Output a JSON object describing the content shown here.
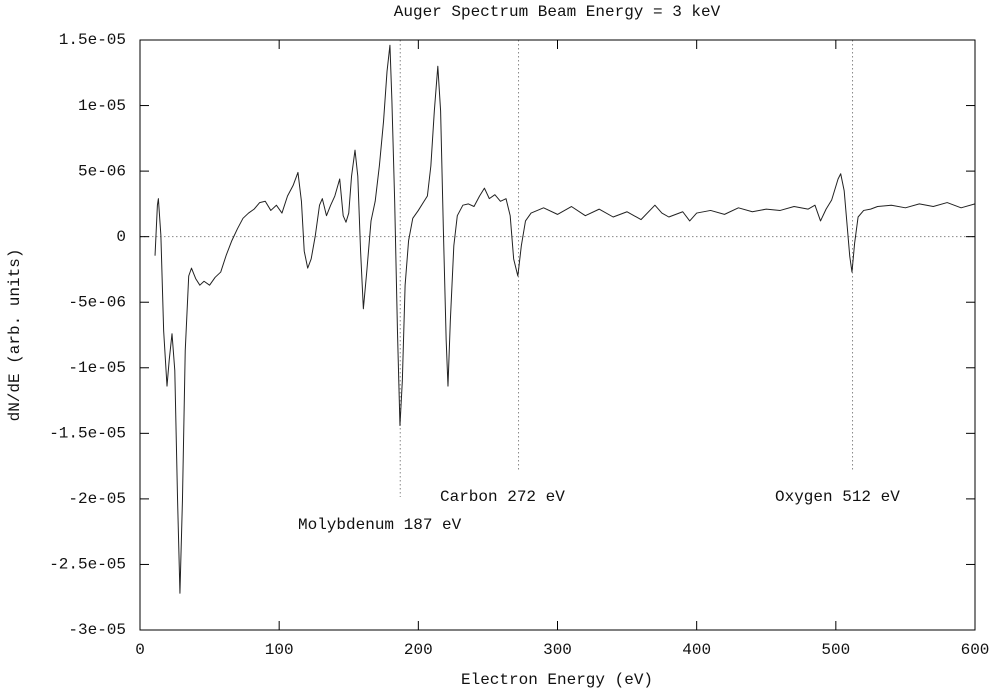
{
  "chart_data": {
    "type": "line",
    "title": "Auger Spectrum Beam Energy = 3 keV",
    "x_label": "Electron Energy (eV)",
    "y_label": "dN/dE (arb. units)",
    "color": "#222222",
    "zeroaxis": true,
    "xlim": [
      0,
      600
    ],
    "xticks": [
      0,
      100,
      200,
      300,
      400,
      500,
      600
    ],
    "ylim": [
      -3e-05,
      1.5e-05
    ],
    "yticks": [
      {
        "value": -3e-05,
        "label": "-3e-05"
      },
      {
        "value": -2.5e-05,
        "label": "-2.5e-05"
      },
      {
        "value": -2e-05,
        "label": "-2e-05"
      },
      {
        "value": -1.5e-05,
        "label": "-1.5e-05"
      },
      {
        "value": -1e-05,
        "label": "-1e-05"
      },
      {
        "value": -5e-06,
        "label": "-5e-06"
      },
      0,
      {
        "value": 5e-06,
        "label": "5e-06"
      },
      {
        "value": 1e-05,
        "label": "1e-05"
      },
      {
        "value": 1.5e-05,
        "label": "1.5e-05"
      }
    ],
    "annotations": [
      {
        "text": "Molybdenum 187 eV",
        "x": 187
      },
      {
        "text": "Carbon 272 eV",
        "x": 272
      },
      {
        "text": "Oxygen 512 eV",
        "x": 512
      }
    ],
    "x": [
      10.8,
      12.5,
      13.2,
      15,
      17,
      19.4,
      21,
      23,
      25,
      27,
      28.7,
      30.5,
      32.5,
      35,
      37,
      40,
      43,
      46,
      50,
      54,
      58,
      62,
      66,
      70,
      74,
      78,
      82,
      86,
      90,
      94,
      98,
      102,
      106,
      110,
      113.5,
      116,
      118,
      120.5,
      123,
      126,
      129,
      131,
      134,
      137,
      140,
      143.5,
      146,
      148,
      150,
      152,
      154.5,
      156.5,
      158.5,
      160.5,
      163,
      166,
      169,
      172,
      175,
      177.5,
      179.6,
      181,
      183,
      185,
      186.8,
      188.5,
      190.5,
      193,
      196,
      200,
      203.5,
      206.5,
      209,
      211.5,
      214,
      216,
      218,
      220,
      221.3,
      223,
      225.5,
      228,
      232,
      236,
      240,
      244,
      247.5,
      251,
      255,
      259,
      263,
      266,
      268.5,
      271.5,
      274,
      277,
      281,
      290,
      300,
      310,
      320,
      330,
      340,
      350,
      360,
      370,
      375,
      380,
      390,
      395,
      400,
      410,
      420,
      430,
      440,
      450,
      460,
      470,
      480,
      485,
      489,
      493,
      497,
      501.6,
      503.5,
      506,
      508,
      510,
      511.6,
      513.5,
      516,
      520,
      525,
      530,
      540,
      550,
      560,
      570,
      580,
      590,
      600
    ],
    "values": [
      -1.45e-06,
      2.4e-06,
      2.9e-06,
      1e-07,
      -7.2e-06,
      -1.14e-05,
      -9.4e-06,
      -7.4e-06,
      -1.02e-05,
      -2.01e-05,
      -2.72e-05,
      -2.01e-05,
      -8.7e-06,
      -3e-06,
      -2.4e-06,
      -3.2e-06,
      -3.7e-06,
      -3.4e-06,
      -3.7e-06,
      -3.1e-06,
      -2.7e-06,
      -1.4e-06,
      -3e-07,
      6e-07,
      1.4e-06,
      1.8e-06,
      2.1e-06,
      2.6e-06,
      2.7e-06,
      2e-06,
      2.4e-06,
      1.8e-06,
      3.1e-06,
      3.9e-06,
      4.9e-06,
      2.7e-06,
      -1.1e-06,
      -2.4e-06,
      -1.7e-06,
      1e-07,
      2.4e-06,
      2.9e-06,
      1.6e-06,
      2.4e-06,
      3.1e-06,
      4.4e-06,
      1.6e-06,
      1.1e-06,
      1.8e-06,
      4.6e-06,
      6.6e-06,
      4.6e-06,
      -1.1e-06,
      -5.5e-06,
      -2.6e-06,
      1.2e-06,
      2.7e-06,
      5.4e-06,
      8.8e-06,
      1.26e-05,
      1.46e-05,
      1.04e-05,
      2.7e-06,
      -7.2e-06,
      -1.44e-05,
      -1.1e-05,
      -3.7e-06,
      -3e-07,
      1.4e-06,
      2e-06,
      2.6e-06,
      3.1e-06,
      5.4e-06,
      9.6e-06,
      1.3e-05,
      9.6e-06,
      5e-07,
      -7.9e-06,
      -1.14e-05,
      -6.4e-06,
      -7e-07,
      1.6e-06,
      2.4e-06,
      2.5e-06,
      2.3e-06,
      3.1e-06,
      3.7e-06,
      2.9e-06,
      3.2e-06,
      2.7e-06,
      2.9e-06,
      1.6e-06,
      -1.7e-06,
      -3e-06,
      -7e-07,
      1.2e-06,
      1.8e-06,
      2.2e-06,
      1.7e-06,
      2.3e-06,
      1.6e-06,
      2.1e-06,
      1.5e-06,
      1.9e-06,
      1.3e-06,
      2.4e-06,
      1.8e-06,
      1.5e-06,
      1.9e-06,
      1.2e-06,
      1.8e-06,
      2e-06,
      1.7e-06,
      2.2e-06,
      1.9e-06,
      2.1e-06,
      2e-06,
      2.3e-06,
      2.1e-06,
      2.4e-06,
      1.2e-06,
      2.1e-06,
      2.8e-06,
      4.4e-06,
      4.8e-06,
      3.5e-06,
      1e-06,
      -1.5e-06,
      -2.7e-06,
      -5e-07,
      1.5e-06,
      2e-06,
      2.1e-06,
      2.3e-06,
      2.4e-06,
      2.2e-06,
      2.5e-06,
      2.3e-06,
      2.6e-06,
      2.2e-06,
      2.5e-06
    ]
  }
}
